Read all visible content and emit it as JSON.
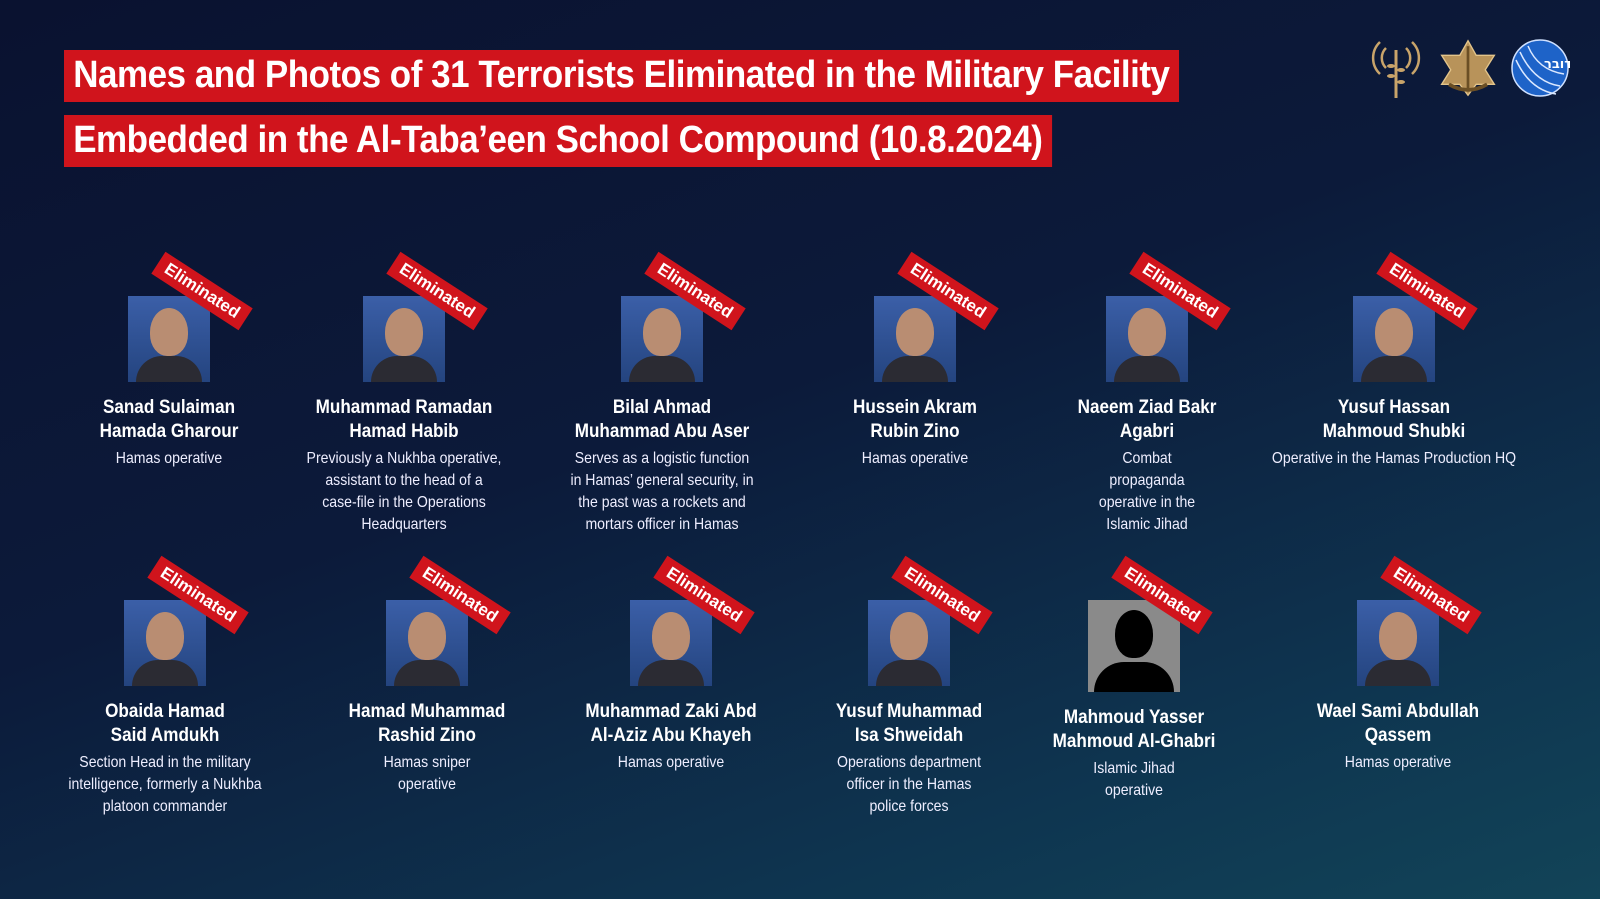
{
  "title": {
    "line1": "Names and Photos of 31 Terrorists Eliminated in the Military Facility",
    "line2": "Embedded in the Al-Taba’een School Compound (10.8.2024)"
  },
  "logos": [
    "radio-antenna-logo",
    "idf-emblem-logo",
    "idf-spokesperson-logo"
  ],
  "ribbon_label": "Eliminated",
  "colors": {
    "accent": "#d0141c",
    "background": "#0c1a3a"
  },
  "people": [
    {
      "name": "Sanad Sulaiman\nHamada Gharour",
      "desc": "Hamas operative"
    },
    {
      "name": "Muhammad Ramadan\nHamad Habib",
      "desc": "Previously a Nukhba operative,\nassistant to the head of a\ncase-file in the Operations\nHeadquarters"
    },
    {
      "name": "Bilal Ahmad\nMuhammad Abu Aser",
      "desc": "Serves as a logistic function\nin Hamas’ general security, in\nthe past was a rockets and\nmortars officer in Hamas"
    },
    {
      "name": "Hussein Akram\nRubin Zino",
      "desc": "Hamas operative"
    },
    {
      "name": "Naeem Ziad Bakr\nAgabri",
      "desc": "Combat\npropaganda\noperative in the\nIslamic Jihad"
    },
    {
      "name": "Yusuf Hassan\nMahmoud Shubki",
      "desc": "Operative in the Hamas Production HQ"
    },
    {
      "name": "Obaida Hamad\nSaid Amdukh",
      "desc": "Section Head in the military\nintelligence, formerly a Nukhba\nplatoon commander"
    },
    {
      "name": "Hamad Muhammad\nRashid Zino",
      "desc": "Hamas sniper\noperative"
    },
    {
      "name": "Muhammad Zaki Abd\nAl-Aziz Abu Khayeh",
      "desc": "Hamas operative"
    },
    {
      "name": "Yusuf Muhammad\nIsa Shweidah",
      "desc": "Operations department\nofficer in the Hamas\npolice forces"
    },
    {
      "name": "Mahmoud Yasser\nMahmoud Al-Ghabri",
      "desc": "Islamic Jihad\noperative"
    },
    {
      "name": "Wael Sami Abdullah\nQassem",
      "desc": "Hamas operative"
    }
  ]
}
